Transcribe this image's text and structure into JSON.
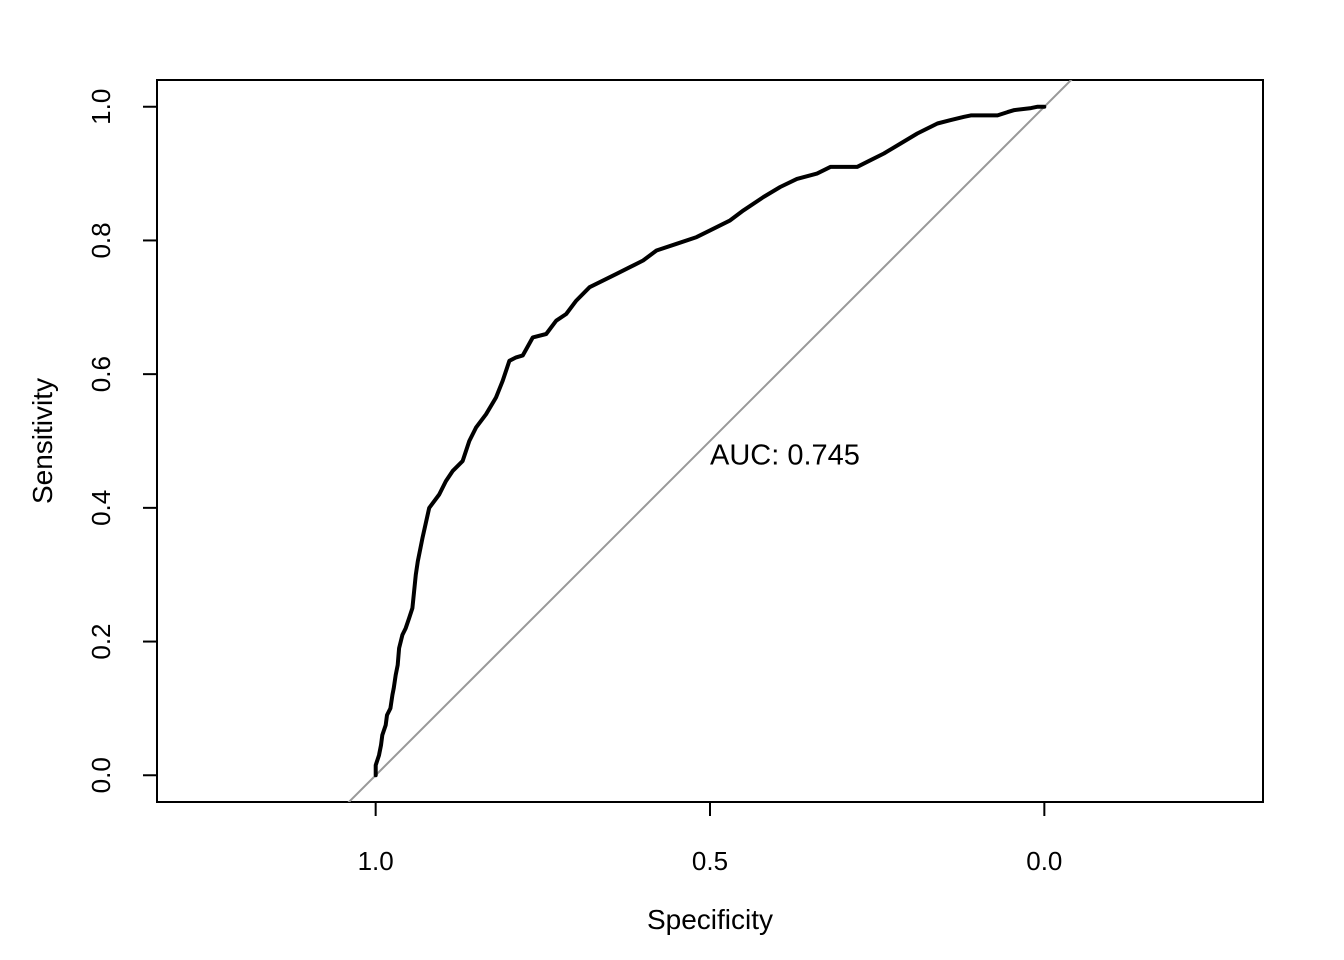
{
  "chart_data": {
    "type": "line",
    "title": "",
    "xlabel": "Specificity",
    "ylabel": "Sensitivity",
    "x_reversed": true,
    "xlim": [
      1.327,
      -0.327
    ],
    "ylim": [
      -0.04,
      1.04
    ],
    "xticks": [
      1.0,
      0.5,
      0.0
    ],
    "xtick_labels": [
      "1.0",
      "0.5",
      "0.0"
    ],
    "yticks": [
      0.0,
      0.2,
      0.4,
      0.6,
      0.8,
      1.0
    ],
    "ytick_labels": [
      "0.0",
      "0.2",
      "0.4",
      "0.6",
      "0.8",
      "1.0"
    ],
    "grid": false,
    "annotation": "AUC: 0.745",
    "annotation_at": {
      "x": 0.5,
      "y": 0.48
    },
    "reference_line": {
      "from": [
        1.0,
        0.0
      ],
      "to": [
        0.0,
        1.0
      ],
      "color": "#999999"
    },
    "series": [
      {
        "color": "#000000",
        "x": [
          1.0,
          1.0,
          0.995,
          0.992,
          0.99,
          0.985,
          0.983,
          0.978,
          0.975,
          0.973,
          0.97,
          0.967,
          0.965,
          0.96,
          0.955,
          0.95,
          0.945,
          0.94,
          0.937,
          0.93,
          0.92,
          0.905,
          0.895,
          0.885,
          0.87,
          0.86,
          0.85,
          0.835,
          0.82,
          0.81,
          0.8,
          0.79,
          0.78,
          0.765,
          0.745,
          0.73,
          0.715,
          0.7,
          0.68,
          0.66,
          0.64,
          0.62,
          0.6,
          0.58,
          0.55,
          0.52,
          0.5,
          0.47,
          0.45,
          0.42,
          0.395,
          0.37,
          0.34,
          0.32,
          0.295,
          0.28,
          0.26,
          0.24,
          0.215,
          0.19,
          0.16,
          0.14,
          0.12,
          0.11,
          0.1,
          0.09,
          0.07,
          0.055,
          0.045,
          0.02,
          0.01,
          0.0
        ],
        "y": [
          0.0,
          0.015,
          0.03,
          0.045,
          0.06,
          0.075,
          0.09,
          0.1,
          0.12,
          0.13,
          0.15,
          0.165,
          0.19,
          0.21,
          0.22,
          0.235,
          0.25,
          0.3,
          0.32,
          0.355,
          0.4,
          0.42,
          0.44,
          0.455,
          0.47,
          0.5,
          0.52,
          0.54,
          0.565,
          0.59,
          0.62,
          0.625,
          0.628,
          0.655,
          0.66,
          0.68,
          0.69,
          0.71,
          0.73,
          0.74,
          0.75,
          0.76,
          0.77,
          0.785,
          0.795,
          0.805,
          0.815,
          0.83,
          0.845,
          0.865,
          0.88,
          0.892,
          0.9,
          0.91,
          0.91,
          0.91,
          0.92,
          0.93,
          0.945,
          0.96,
          0.975,
          0.98,
          0.985,
          0.987,
          0.987,
          0.987,
          0.987,
          0.992,
          0.995,
          0.998,
          1.0,
          1.0
        ]
      }
    ]
  }
}
